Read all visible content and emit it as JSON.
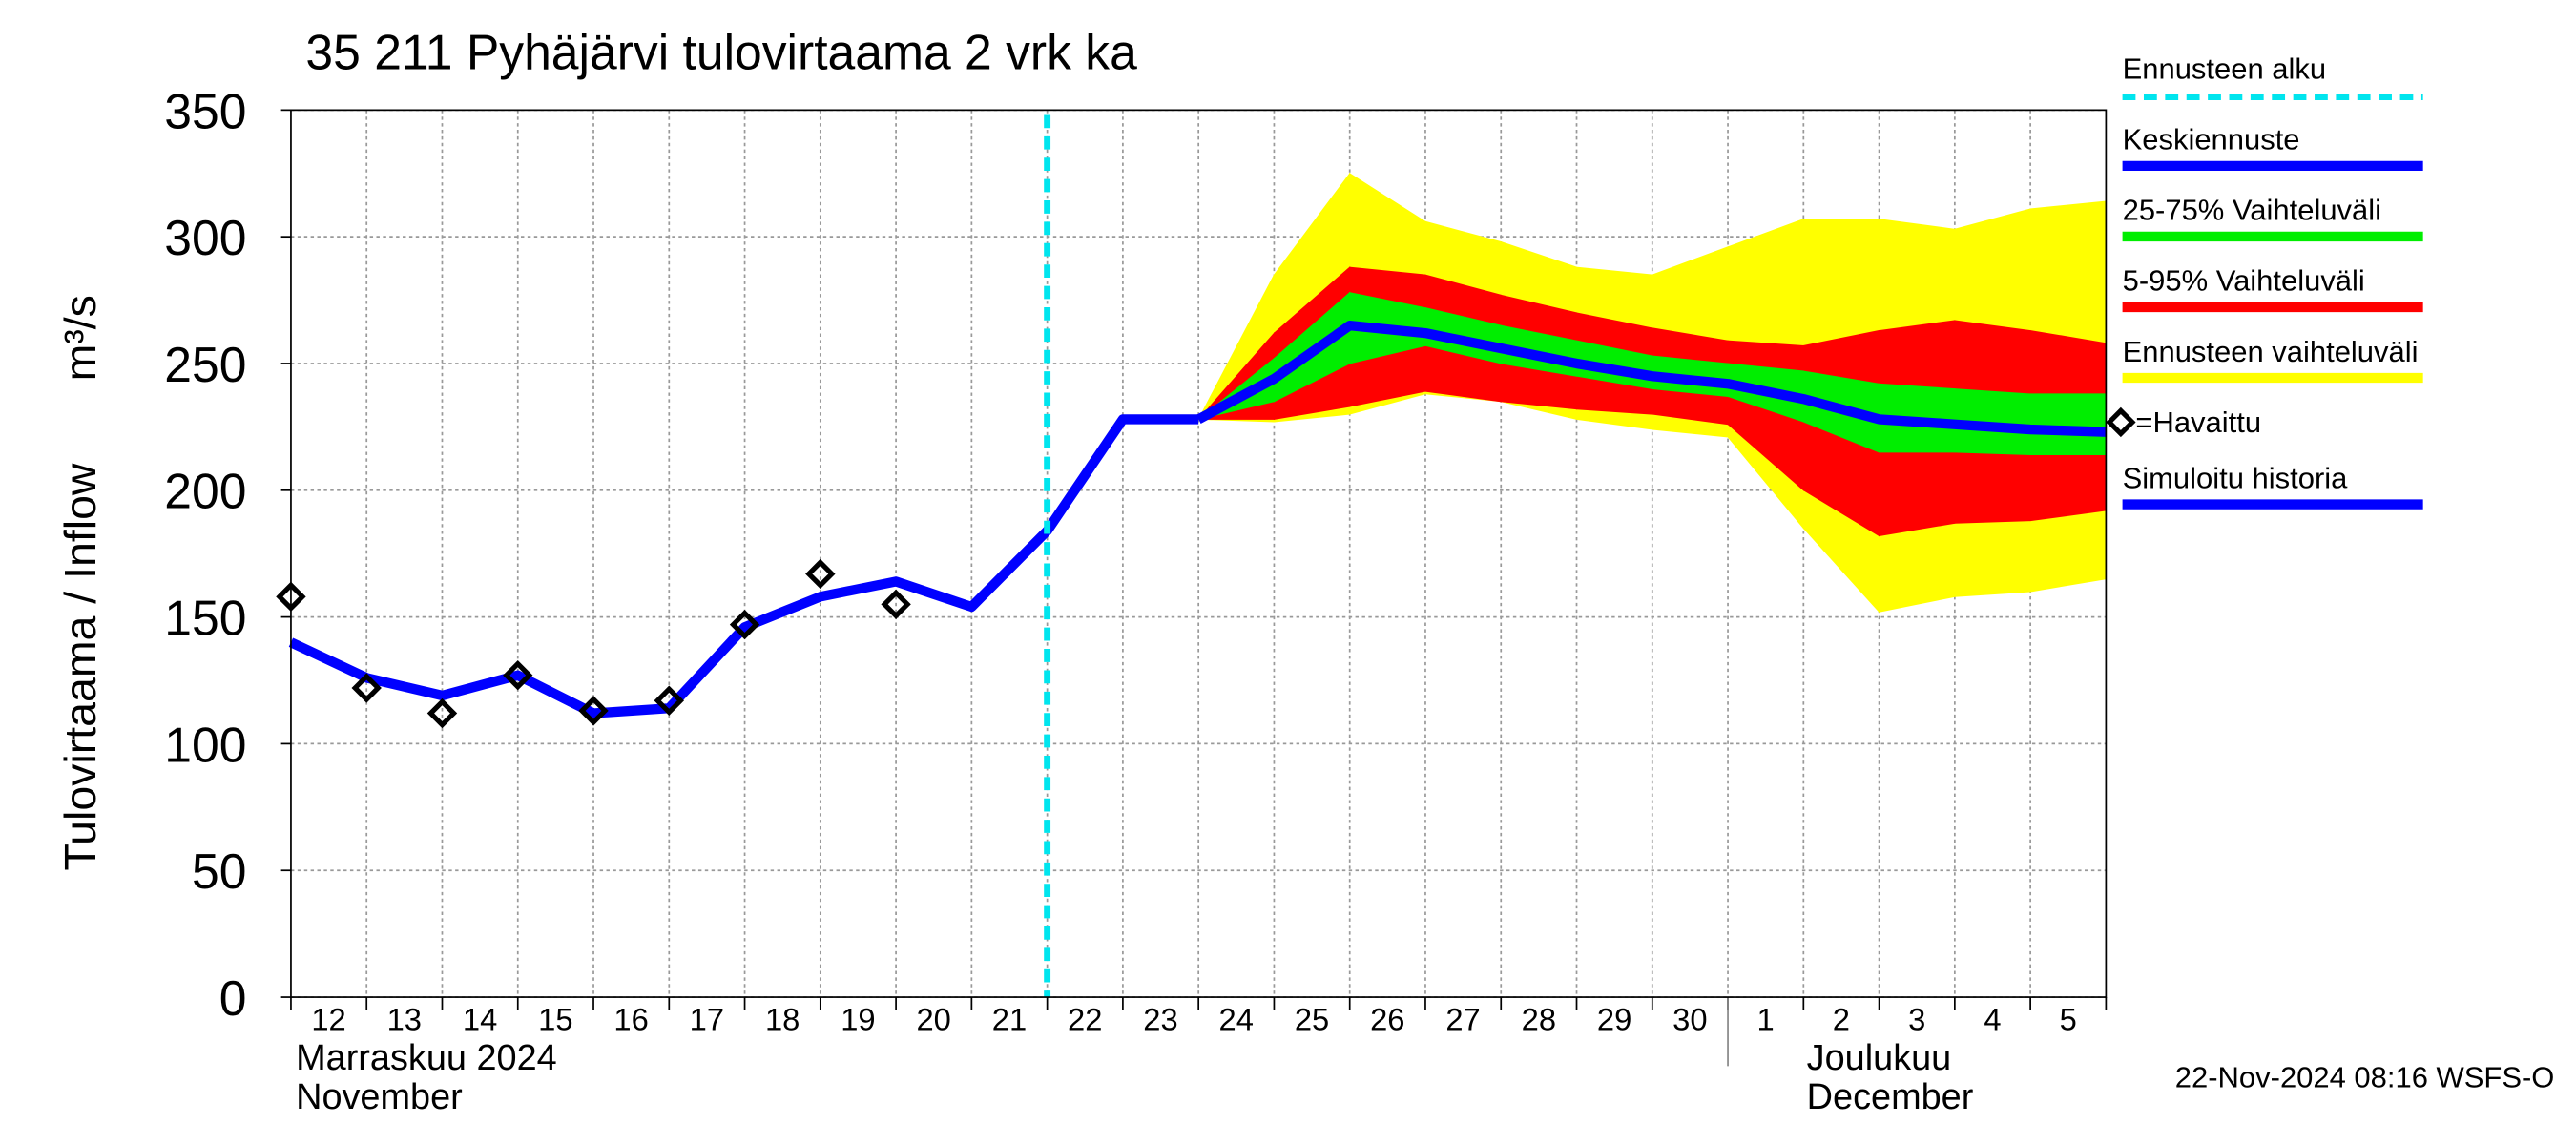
{
  "chart_data": {
    "type": "line",
    "title": "35 211 Pyhäjärvi tulovirtaama 2 vrk ka",
    "y_label": "Tulovirtaama / Inflow",
    "y_unit": "m³/s",
    "footer": "22-Nov-2024 08:16 WSFS-O",
    "categories": [
      "12",
      "13",
      "14",
      "15",
      "16",
      "17",
      "18",
      "19",
      "20",
      "21",
      "22",
      "23",
      "24",
      "25",
      "26",
      "27",
      "28",
      "29",
      "30",
      "1",
      "2",
      "3",
      "4",
      "5",
      null
    ],
    "months": [
      {
        "name": "Marraskuu 2024",
        "name_en": "November",
        "x": 0
      },
      {
        "name": "Joulukuu",
        "name_en": "December",
        "x": 19
      }
    ],
    "forecast_start": {
      "name": "Ennusteen alku",
      "color": "#00e5ee",
      "x": 10
    },
    "ylim": [
      0,
      350
    ],
    "yticks": [
      0,
      50,
      100,
      150,
      200,
      250,
      300,
      350
    ],
    "grid": true,
    "series": [
      {
        "name": "Ennusteen vaihteluväli",
        "type": "band",
        "color": "#ffff00",
        "low": [
          null,
          null,
          null,
          null,
          null,
          null,
          null,
          null,
          null,
          null,
          null,
          null,
          228,
          227,
          230,
          238,
          235,
          228,
          224,
          221,
          185,
          152,
          158,
          160,
          165
        ],
        "high": [
          null,
          null,
          null,
          null,
          null,
          null,
          null,
          null,
          null,
          null,
          null,
          null,
          228,
          285,
          325,
          306,
          298,
          288,
          285,
          296,
          307,
          307,
          303,
          311,
          314
        ]
      },
      {
        "name": "5-95% Vaihteluväli",
        "type": "band",
        "color": "#ff0000",
        "low": [
          null,
          null,
          null,
          null,
          null,
          null,
          null,
          null,
          null,
          null,
          null,
          null,
          228,
          228,
          233,
          239,
          235,
          232,
          230,
          226,
          200,
          182,
          187,
          188,
          192
        ],
        "high": [
          null,
          null,
          null,
          null,
          null,
          null,
          null,
          null,
          null,
          null,
          null,
          null,
          228,
          262,
          288,
          285,
          277,
          270,
          264,
          259,
          257,
          263,
          267,
          263,
          258
        ]
      },
      {
        "name": "25-75% Vaihteluväli",
        "type": "band",
        "color": "#00ee00",
        "low": [
          null,
          null,
          null,
          null,
          null,
          null,
          null,
          null,
          null,
          null,
          null,
          null,
          228,
          235,
          250,
          257,
          250,
          245,
          240,
          237,
          227,
          215,
          215,
          214,
          214
        ],
        "high": [
          null,
          null,
          null,
          null,
          null,
          null,
          null,
          null,
          null,
          null,
          null,
          null,
          228,
          252,
          278,
          272,
          265,
          259,
          253,
          250,
          247,
          242,
          240,
          238,
          238
        ]
      },
      {
        "name": "Keskiennuste",
        "type": "line",
        "color": "#0000ff",
        "values": [
          null,
          null,
          null,
          null,
          null,
          null,
          null,
          null,
          null,
          null,
          null,
          null,
          228,
          244,
          265,
          262,
          256,
          250,
          245,
          242,
          236,
          228,
          226,
          224,
          223
        ]
      },
      {
        "name": "Simuloitu historia",
        "type": "line",
        "color": "#0000ff",
        "values": [
          140,
          126,
          119,
          127,
          112,
          114,
          146,
          158,
          164,
          154,
          184,
          228,
          228,
          null,
          null,
          null,
          null,
          null,
          null,
          null,
          null,
          null,
          null,
          null,
          null
        ]
      },
      {
        "name": "=Havaittu",
        "type": "markers",
        "color": "#000000",
        "values": [
          158,
          122,
          112,
          127,
          113,
          117,
          147,
          167,
          155,
          null,
          null,
          null,
          null,
          null,
          null,
          null,
          null,
          null,
          null,
          null,
          null,
          null,
          null,
          null,
          null
        ]
      }
    ]
  }
}
